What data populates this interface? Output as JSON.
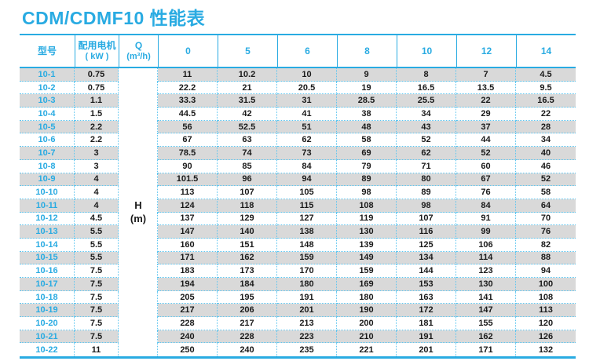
{
  "title": "CDM/CDMF10 性能表",
  "colors": {
    "accent": "#29ABE2",
    "dashed_border": "#5EC6F0",
    "stripe_gray": "#D9D9D9",
    "value_text": "#1A1A1A"
  },
  "table": {
    "headers": {
      "model": "型号",
      "motor_line1": "配用电机",
      "motor_line2": "( kW )",
      "q_line1": "Q",
      "q_line2": "(m³/h)",
      "flow_columns": [
        "0",
        "5",
        "6",
        "8",
        "10",
        "12",
        "14"
      ]
    },
    "merged_cell": {
      "line1": "H",
      "line2": "(m)"
    },
    "rows": [
      {
        "model": "10-1",
        "kw": "0.75",
        "values": [
          "11",
          "10.2",
          "10",
          "9",
          "8",
          "7",
          "4.5"
        ]
      },
      {
        "model": "10-2",
        "kw": "0.75",
        "values": [
          "22.2",
          "21",
          "20.5",
          "19",
          "16.5",
          "13.5",
          "9.5"
        ]
      },
      {
        "model": "10-3",
        "kw": "1.1",
        "values": [
          "33.3",
          "31.5",
          "31",
          "28.5",
          "25.5",
          "22",
          "16.5"
        ]
      },
      {
        "model": "10-4",
        "kw": "1.5",
        "values": [
          "44.5",
          "42",
          "41",
          "38",
          "34",
          "29",
          "22"
        ]
      },
      {
        "model": "10-5",
        "kw": "2.2",
        "values": [
          "56",
          "52.5",
          "51",
          "48",
          "43",
          "37",
          "28"
        ]
      },
      {
        "model": "10-6",
        "kw": "2.2",
        "values": [
          "67",
          "63",
          "62",
          "58",
          "52",
          "44",
          "34"
        ]
      },
      {
        "model": "10-7",
        "kw": "3",
        "values": [
          "78.5",
          "74",
          "73",
          "69",
          "62",
          "52",
          "40"
        ]
      },
      {
        "model": "10-8",
        "kw": "3",
        "values": [
          "90",
          "85",
          "84",
          "79",
          "71",
          "60",
          "46"
        ]
      },
      {
        "model": "10-9",
        "kw": "4",
        "values": [
          "101.5",
          "96",
          "94",
          "89",
          "80",
          "67",
          "52"
        ]
      },
      {
        "model": "10-10",
        "kw": "4",
        "values": [
          "113",
          "107",
          "105",
          "98",
          "89",
          "76",
          "58"
        ]
      },
      {
        "model": "10-11",
        "kw": "4",
        "values": [
          "124",
          "118",
          "115",
          "108",
          "98",
          "84",
          "64"
        ]
      },
      {
        "model": "10-12",
        "kw": "4.5",
        "values": [
          "137",
          "129",
          "127",
          "119",
          "107",
          "91",
          "70"
        ]
      },
      {
        "model": "10-13",
        "kw": "5.5",
        "values": [
          "147",
          "140",
          "138",
          "130",
          "116",
          "99",
          "76"
        ]
      },
      {
        "model": "10-14",
        "kw": "5.5",
        "values": [
          "160",
          "151",
          "148",
          "139",
          "125",
          "106",
          "82"
        ]
      },
      {
        "model": "10-15",
        "kw": "5.5",
        "values": [
          "171",
          "162",
          "159",
          "149",
          "134",
          "114",
          "88"
        ]
      },
      {
        "model": "10-16",
        "kw": "7.5",
        "values": [
          "183",
          "173",
          "170",
          "159",
          "144",
          "123",
          "94"
        ]
      },
      {
        "model": "10-17",
        "kw": "7.5",
        "values": [
          "194",
          "184",
          "180",
          "169",
          "153",
          "130",
          "100"
        ]
      },
      {
        "model": "10-18",
        "kw": "7.5",
        "values": [
          "205",
          "195",
          "191",
          "180",
          "163",
          "141",
          "108"
        ]
      },
      {
        "model": "10-19",
        "kw": "7.5",
        "values": [
          "217",
          "206",
          "201",
          "190",
          "172",
          "147",
          "113"
        ]
      },
      {
        "model": "10-20",
        "kw": "7.5",
        "values": [
          "228",
          "217",
          "213",
          "200",
          "181",
          "155",
          "120"
        ]
      },
      {
        "model": "10-21",
        "kw": "7.5",
        "values": [
          "240",
          "228",
          "223",
          "210",
          "191",
          "162",
          "126"
        ]
      },
      {
        "model": "10-22",
        "kw": "11",
        "values": [
          "250",
          "240",
          "235",
          "221",
          "201",
          "171",
          "132"
        ]
      }
    ]
  }
}
